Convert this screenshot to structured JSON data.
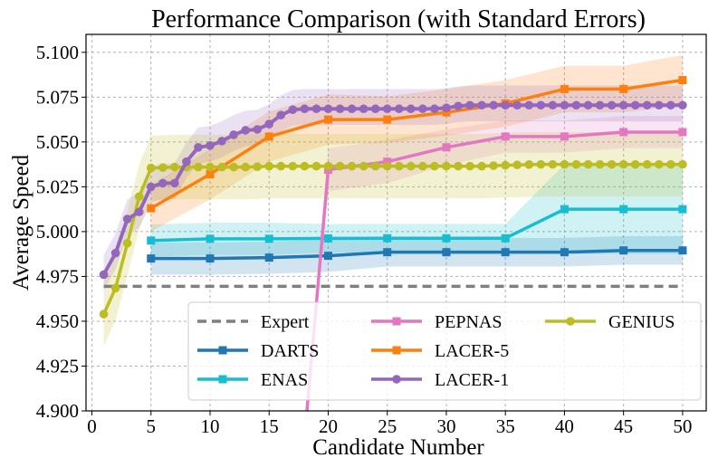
{
  "chart_data": {
    "type": "line",
    "title": "Performance Comparison (with Standard Errors)",
    "xlabel": "Candidate Number",
    "ylabel": "Average Speed",
    "xlim": [
      -0.5,
      52
    ],
    "ylim": [
      4.9,
      5.11
    ],
    "xticks": [
      0,
      5,
      10,
      15,
      20,
      25,
      30,
      35,
      40,
      45,
      50
    ],
    "yticks": [
      4.9,
      4.925,
      4.95,
      4.975,
      5.0,
      5.025,
      5.05,
      5.075,
      5.1
    ],
    "ytick_labels": [
      "4.900",
      "4.925",
      "4.950",
      "4.975",
      "5.000",
      "5.025",
      "5.050",
      "5.075",
      "5.100"
    ],
    "grid": true,
    "legend_position": "lower-right",
    "legend_order": [
      "Expert",
      "DARTS",
      "ENAS",
      "PEPNAS",
      "LACER-5",
      "LACER-1",
      "GENIUS"
    ],
    "series": [
      {
        "name": "Expert",
        "color": "#7f7f7f",
        "style": "dashed",
        "marker": "none",
        "x": [
          1,
          50
        ],
        "y": [
          4.9695,
          4.9695
        ]
      },
      {
        "name": "DARTS",
        "color": "#1f77b4",
        "style": "solid",
        "marker": "square",
        "x": [
          5,
          10,
          15,
          20,
          25,
          30,
          35,
          40,
          45,
          50
        ],
        "y": [
          4.985,
          4.985,
          4.9855,
          4.9865,
          4.9885,
          4.9885,
          4.9885,
          4.9885,
          4.9895,
          4.9895
        ],
        "err": [
          0.009,
          0.009,
          0.009,
          0.009,
          0.008,
          0.008,
          0.008,
          0.008,
          0.008,
          0.008
        ]
      },
      {
        "name": "ENAS",
        "color": "#17becf",
        "style": "solid",
        "marker": "square",
        "x": [
          5,
          10,
          15,
          20,
          25,
          30,
          35,
          40,
          45,
          50
        ],
        "y": [
          4.995,
          4.996,
          4.996,
          4.9962,
          4.9963,
          4.9963,
          4.9963,
          5.0125,
          5.0125,
          5.0125
        ],
        "err": [
          0.009,
          0.009,
          0.009,
          0.008,
          0.008,
          0.008,
          0.008,
          0.025,
          0.025,
          0.025
        ]
      },
      {
        "name": "PEPNAS",
        "color": "#e377c2",
        "style": "solid",
        "marker": "square",
        "x": [
          18.2,
          20,
          25,
          30,
          35,
          40,
          45,
          50
        ],
        "y": [
          4.9,
          5.0345,
          5.039,
          5.047,
          5.053,
          5.053,
          5.0555,
          5.0555
        ],
        "err": [
          0.0,
          0.012,
          0.012,
          0.01,
          0.009,
          0.009,
          0.009,
          0.009
        ]
      },
      {
        "name": "LACER-5",
        "color": "#ff7f0e",
        "style": "solid",
        "marker": "square",
        "x": [
          5,
          10,
          15,
          20,
          25,
          30,
          35,
          40,
          45,
          50
        ],
        "y": [
          5.013,
          5.032,
          5.053,
          5.0625,
          5.0625,
          5.0665,
          5.0715,
          5.0795,
          5.0795,
          5.0845
        ],
        "err": [
          0.013,
          0.014,
          0.014,
          0.014,
          0.013,
          0.013,
          0.013,
          0.013,
          0.013,
          0.014
        ]
      },
      {
        "name": "LACER-1",
        "color": "#9467bd",
        "style": "solid",
        "marker": "circle",
        "x": [
          1,
          2,
          3,
          4,
          5,
          6,
          7,
          8,
          9,
          10,
          11,
          12,
          13,
          14,
          15,
          16,
          17,
          18,
          19,
          20,
          21,
          22,
          23,
          24,
          25,
          26,
          27,
          28,
          29,
          30,
          31,
          32,
          33,
          34,
          35,
          36,
          37,
          38,
          39,
          40,
          41,
          42,
          43,
          44,
          45,
          46,
          47,
          48,
          49,
          50
        ],
        "y": [
          4.976,
          4.988,
          5.007,
          5.011,
          5.025,
          5.027,
          5.027,
          5.039,
          5.047,
          5.048,
          5.0505,
          5.054,
          5.0565,
          5.057,
          5.06,
          5.065,
          5.068,
          5.0685,
          5.0685,
          5.0685,
          5.0685,
          5.0685,
          5.0685,
          5.0685,
          5.0685,
          5.0685,
          5.0685,
          5.0685,
          5.0685,
          5.069,
          5.07,
          5.0705,
          5.0705,
          5.0705,
          5.0705,
          5.0705,
          5.0705,
          5.0705,
          5.0705,
          5.0705,
          5.0705,
          5.0705,
          5.0705,
          5.0705,
          5.0705,
          5.0705,
          5.0705,
          5.0705,
          5.0705,
          5.0705
        ],
        "err_low": 0.009,
        "err_high": 0.011
      },
      {
        "name": "GENIUS",
        "color": "#bcbd22",
        "style": "solid",
        "marker": "circle",
        "x": [
          1,
          2,
          3,
          4,
          5,
          6,
          7,
          8,
          9,
          10,
          11,
          12,
          13,
          14,
          15,
          16,
          17,
          18,
          19,
          20,
          21,
          22,
          23,
          24,
          25,
          26,
          27,
          28,
          29,
          30,
          31,
          32,
          33,
          34,
          35,
          36,
          37,
          38,
          39,
          40,
          41,
          42,
          43,
          44,
          45,
          46,
          47,
          48,
          49,
          50
        ],
        "y": [
          4.954,
          4.9685,
          4.9935,
          5.0195,
          5.0355,
          5.0357,
          5.036,
          5.036,
          5.036,
          5.036,
          5.036,
          5.036,
          5.036,
          5.0362,
          5.0365,
          5.0365,
          5.0365,
          5.0365,
          5.0365,
          5.0365,
          5.0365,
          5.0365,
          5.0365,
          5.0365,
          5.0365,
          5.0365,
          5.0365,
          5.0365,
          5.0365,
          5.0365,
          5.0365,
          5.0365,
          5.0365,
          5.0368,
          5.037,
          5.0372,
          5.0374,
          5.0375,
          5.0375,
          5.0375,
          5.0375,
          5.0375,
          5.0375,
          5.0375,
          5.0375,
          5.0375,
          5.0375,
          5.0375,
          5.0375,
          5.0375
        ],
        "err": 0.018
      }
    ]
  }
}
